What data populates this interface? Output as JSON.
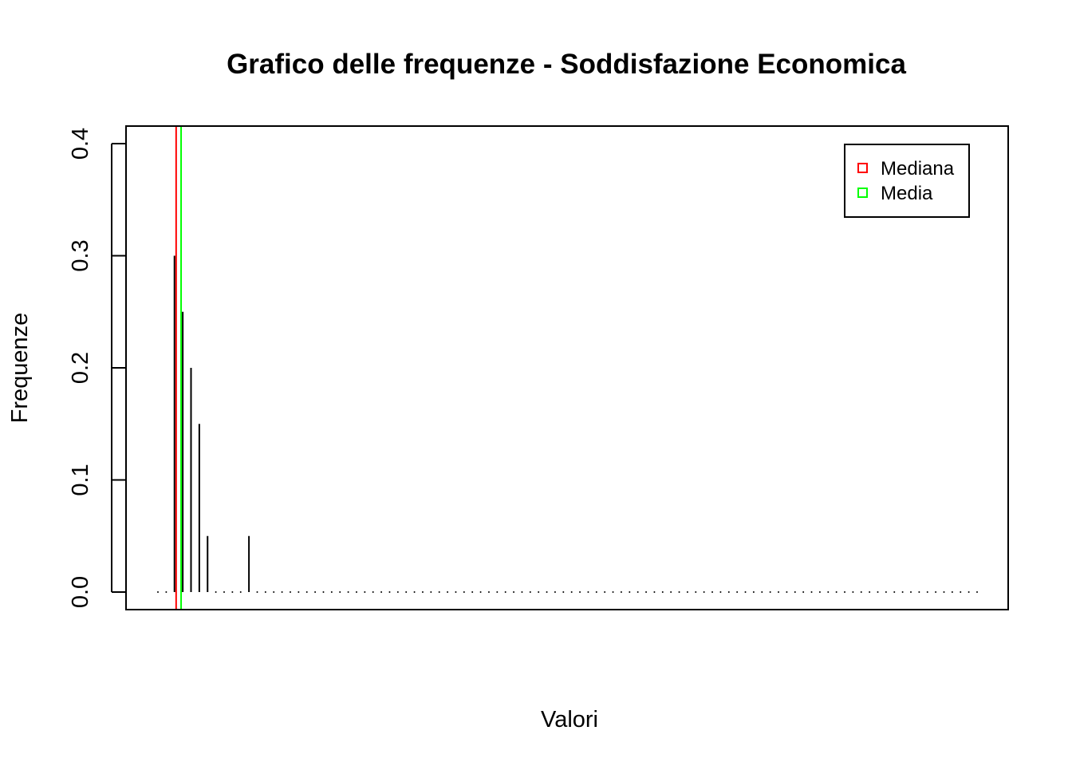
{
  "chart_data": {
    "type": "bar",
    "title": "Grafico delle frequenze - Soddisfazione Economica",
    "xlabel": "Valori",
    "ylabel": "Frequenze",
    "x_ticks_shown": false,
    "ylim": [
      0,
      0.4
    ],
    "y_ticks": [
      "0.0",
      "0.1",
      "0.2",
      "0.3",
      "0.4"
    ],
    "y_tick_values": [
      0,
      0.1,
      0.2,
      0.3,
      0.4
    ],
    "grid": false,
    "legend_position": "top-right",
    "positions": 100,
    "values": [
      0,
      0,
      0.3,
      0.25,
      0.2,
      0.15,
      0.05,
      0,
      0,
      0,
      0,
      0.05,
      0,
      0,
      0,
      0,
      0,
      0,
      0,
      0,
      0,
      0,
      0,
      0,
      0,
      0,
      0,
      0,
      0,
      0,
      0,
      0,
      0,
      0,
      0,
      0,
      0,
      0,
      0,
      0,
      0,
      0,
      0,
      0,
      0,
      0,
      0,
      0,
      0,
      0,
      0,
      0,
      0,
      0,
      0,
      0,
      0,
      0,
      0,
      0,
      0,
      0,
      0,
      0,
      0,
      0,
      0,
      0,
      0,
      0,
      0,
      0,
      0,
      0,
      0,
      0,
      0,
      0,
      0,
      0,
      0,
      0,
      0,
      0,
      0,
      0,
      0,
      0,
      0,
      0,
      0,
      0,
      0,
      0,
      0,
      0,
      0,
      0,
      0,
      0
    ],
    "reference_lines": [
      {
        "name": "Mediana",
        "position_index": 2.2,
        "color": "#ff0000"
      },
      {
        "name": "Media",
        "position_index": 2.8,
        "color": "#00ff00"
      }
    ],
    "legend": [
      {
        "label": "Mediana",
        "color": "#ff0000"
      },
      {
        "label": "Media",
        "color": "#00ff00"
      }
    ]
  }
}
